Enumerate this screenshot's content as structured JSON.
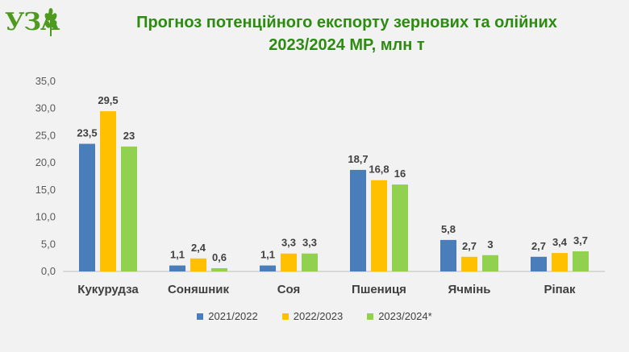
{
  "logo": {
    "text": "УЗА"
  },
  "title": {
    "line1": "Прогноз потенційного експорту зернових та олійних",
    "line2": "2023/2024 МР, млн т"
  },
  "chart_data": {
    "type": "bar",
    "title": "Прогноз потенційного експорту зернових та олійних 2023/2024 МР, млн т",
    "categories": [
      "Кукурудза",
      "Соняшник",
      "Соя",
      "Пшениця",
      "Ячмінь",
      "Ріпак"
    ],
    "ylim": [
      0,
      35
    ],
    "yticks": [
      "0,0",
      "5,0",
      "10,0",
      "15,0",
      "20,0",
      "25,0",
      "30,0",
      "35,0"
    ],
    "grid": false,
    "legend_position": "bottom",
    "series": [
      {
        "name": "2021/2022",
        "color": "#4a7ebb",
        "values": [
          23.5,
          1.1,
          1.1,
          18.7,
          5.8,
          2.7
        ],
        "labels": [
          "23,5",
          "1,1",
          "1,1",
          "18,7",
          "5,8",
          "2,7"
        ]
      },
      {
        "name": "2022/2023",
        "color": "#ffc000",
        "values": [
          29.5,
          2.4,
          3.3,
          16.8,
          2.7,
          3.4
        ],
        "labels": [
          "29,5",
          "2,4",
          "3,3",
          "16,8",
          "2,7",
          "3,4"
        ]
      },
      {
        "name": "2023/2024*",
        "color": "#92d050",
        "values": [
          23,
          0.6,
          3.3,
          16,
          3,
          3.7
        ],
        "labels": [
          "23",
          "0,6",
          "3,3",
          "16",
          "3",
          "3,7"
        ]
      }
    ]
  }
}
